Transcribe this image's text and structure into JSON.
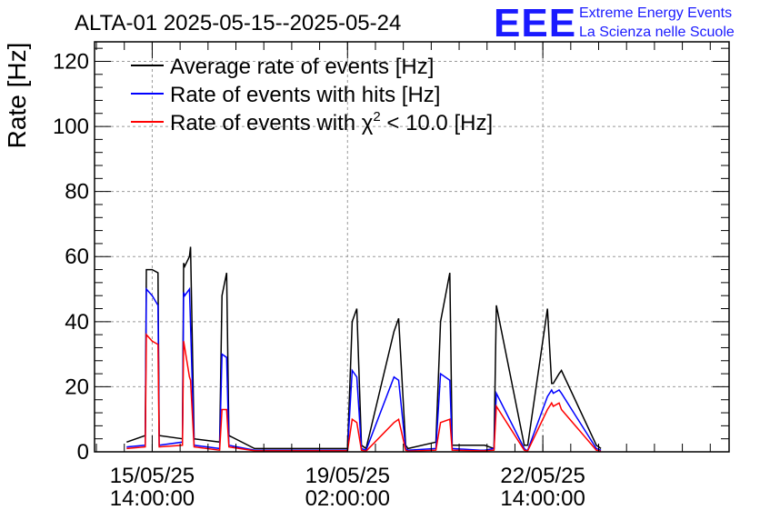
{
  "header": {
    "title": "ALTA-01 2025-05-15--2025-05-24",
    "logo_letters": "EEE",
    "logo_line1": "Extreme Energy Events",
    "logo_line2": "La Scienza nelle Scuole"
  },
  "colors": {
    "average": "#000000",
    "hits": "#0000ff",
    "chi2": "#ff0000",
    "logo": "#1a1aff",
    "grid": "#999999"
  },
  "chart_data": {
    "type": "line",
    "title": "ALTA-01 2025-05-15--2025-05-24",
    "ylabel": "Rate [Hz]",
    "xlabel": "",
    "ylim": [
      0,
      126
    ],
    "yticks": [
      0,
      20,
      40,
      60,
      80,
      100,
      120
    ],
    "x_unit": "hours from 2025-05-15 00:00",
    "xlim": [
      -10.8,
      262.1
    ],
    "xticks": [
      {
        "x": 14,
        "date": "15/05/25",
        "time": "14:00:00"
      },
      {
        "x": 98,
        "date": "19/05/25",
        "time": "02:00:00"
      },
      {
        "x": 182,
        "date": "22/05/25",
        "time": "14:00:00"
      }
    ],
    "grid": true,
    "legend_position": "top-left",
    "series": [
      {
        "name": "Average rate of events [Hz]",
        "color": "#000000",
        "x": [
          3,
          11,
          11.5,
          14,
          16.5,
          17,
          27,
          27.5,
          28,
          30,
          30.5,
          32,
          43,
          44,
          46,
          47,
          58,
          60,
          63,
          64,
          74,
          76,
          98,
          100,
          102,
          104,
          106,
          118,
          120,
          123,
          124,
          136,
          138,
          142,
          143,
          155,
          157,
          161,
          162,
          174,
          174.8,
          175.5,
          184,
          185.8,
          186.5,
          189,
          190,
          205,
          207
        ],
        "y": [
          3,
          5,
          56,
          56,
          55,
          5,
          4,
          58,
          57,
          60,
          63,
          4,
          3,
          48,
          55,
          5,
          1,
          1,
          1,
          1,
          1,
          1,
          1,
          40,
          44,
          2,
          1,
          37,
          41,
          2,
          1,
          3,
          40,
          55,
          2,
          2,
          2,
          1,
          45,
          2,
          2,
          2,
          44,
          21,
          21,
          24,
          25,
          2,
          1
        ]
      },
      {
        "name": "Rate of events with hits [Hz]",
        "color": "#0000ff",
        "x": [
          3,
          11,
          11.5,
          14,
          16.5,
          17,
          27,
          27.5,
          28,
          30,
          30.5,
          32,
          43,
          44,
          46,
          47,
          58,
          60,
          98,
          100,
          102,
          104,
          106,
          118,
          120,
          123,
          124,
          136,
          138,
          142,
          143,
          155,
          157,
          161,
          162,
          174,
          174.8,
          175.5,
          184,
          185.8,
          186.5,
          189,
          190,
          205,
          207
        ],
        "y": [
          1.5,
          2,
          50,
          48,
          45,
          2,
          3,
          49,
          48,
          50,
          39,
          2,
          1,
          30,
          29,
          2,
          0.5,
          0.5,
          0.5,
          25,
          23,
          1,
          0.5,
          23,
          22,
          1,
          0.5,
          1,
          24,
          22,
          1,
          0.5,
          0.5,
          1,
          18,
          1,
          0.5,
          0.5,
          17,
          19,
          18,
          19,
          18,
          1,
          0.5
        ]
      },
      {
        "name": "Rate of events with χ² < 10.0 [Hz]",
        "color": "#ff0000",
        "x": [
          3,
          11,
          11.5,
          14,
          16.5,
          17,
          27,
          27.5,
          28,
          30,
          30.5,
          32,
          43,
          44,
          46,
          47,
          58,
          60,
          98,
          100,
          102,
          104,
          106,
          118,
          120,
          123,
          124,
          136,
          138,
          142,
          143,
          155,
          157,
          161,
          162,
          174,
          174.8,
          175.5,
          184,
          185.8,
          186.5,
          189,
          190,
          205,
          207
        ],
        "y": [
          1,
          1.5,
          36,
          34,
          33,
          1.5,
          2,
          34,
          32,
          23,
          22,
          1.5,
          0.5,
          13,
          13,
          1.5,
          0.3,
          0.3,
          0.3,
          10,
          9,
          0.5,
          0.2,
          9,
          10,
          0.5,
          0.2,
          0.5,
          9,
          10,
          0.5,
          0.3,
          0.3,
          0.5,
          14,
          0.5,
          0.3,
          0.3,
          13,
          15,
          14,
          15,
          13,
          0.5,
          0.2
        ]
      }
    ],
    "legend_labels": {
      "average": "Average rate of events [Hz]",
      "hits": "Rate of events with hits [Hz]",
      "chi2_prefix": "Rate of events with χ",
      "chi2_sup": "2",
      "chi2_suffix": " < 10.0 [Hz]"
    }
  }
}
